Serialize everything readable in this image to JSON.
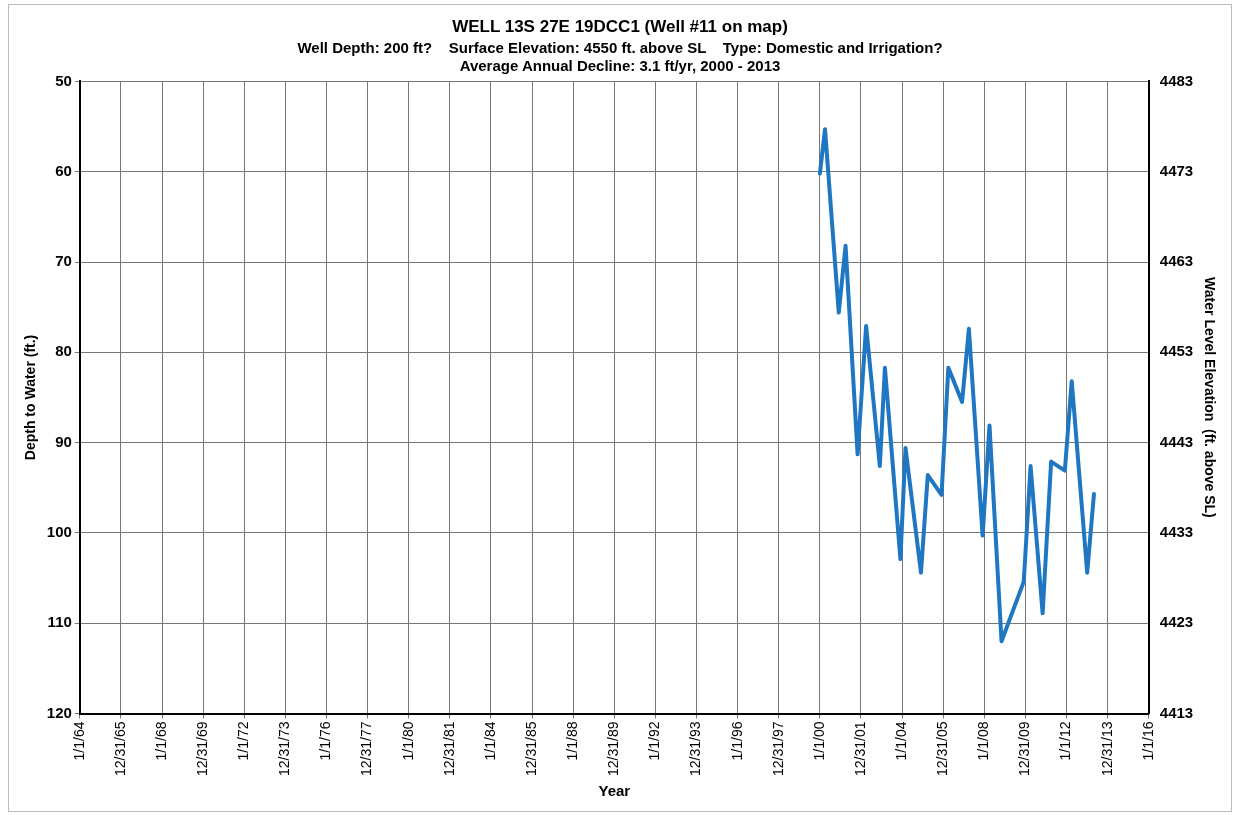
{
  "chart_data": {
    "type": "line",
    "title": "WELL 13S 27E 19DCC1 (Well #11 on map)",
    "subtitle": "Well Depth: 200 ft?    Surface Elevation: 4550 ft. above SL    Type: Domestic and Irrigation?\nAverage Annual Decline: 3.1 ft/yr, 2000 - 2013",
    "xlabel": "Year",
    "ylabel": "Depth to Water (ft.)",
    "y2label": "Water Level Elevation  (ft. above SL)",
    "x": [
      "2000-01",
      "2000-04",
      "2000-12",
      "2001-04",
      "2001-11",
      "2002-04",
      "2002-12",
      "2003-03",
      "2003-12",
      "2004-03",
      "2004-12",
      "2005-04",
      "2005-12",
      "2006-04",
      "2006-12",
      "2007-04",
      "2007-12",
      "2008-04",
      "2008-11",
      "2009-12",
      "2010-04",
      "2010-11",
      "2011-04",
      "2011-12",
      "2012-04",
      "2013-01",
      "2013-05"
    ],
    "series": [
      {
        "color": "#1f77c4",
        "values": [
          60.2,
          55.3,
          75.6,
          68.2,
          91.3,
          77.1,
          92.6,
          81.7,
          102.9,
          90.6,
          104.4,
          93.6,
          95.8,
          81.7,
          85.5,
          77.4,
          100.3,
          88.1,
          112.0,
          105.4,
          92.6,
          108.9,
          92.1,
          93.1,
          83.2,
          104.4,
          95.7
        ]
      }
    ],
    "xlim": [
      "1964-01-01",
      "2016-01-01"
    ],
    "xticks": [
      {
        "value": "1964-01-01",
        "label": "1/1/64"
      },
      {
        "value": "1965-12-31",
        "label": "12/31/65"
      },
      {
        "value": "1968-01-01",
        "label": "1/1/68"
      },
      {
        "value": "1969-12-31",
        "label": "12/31/69"
      },
      {
        "value": "1972-01-01",
        "label": "1/1/72"
      },
      {
        "value": "1973-12-31",
        "label": "12/31/73"
      },
      {
        "value": "1976-01-01",
        "label": "1/1/76"
      },
      {
        "value": "1977-12-31",
        "label": "12/31/77"
      },
      {
        "value": "1980-01-01",
        "label": "1/1/80"
      },
      {
        "value": "1981-12-31",
        "label": "12/31/81"
      },
      {
        "value": "1984-01-01",
        "label": "1/1/84"
      },
      {
        "value": "1985-12-31",
        "label": "12/31/85"
      },
      {
        "value": "1988-01-01",
        "label": "1/1/88"
      },
      {
        "value": "1989-12-31",
        "label": "12/31/89"
      },
      {
        "value": "1992-01-01",
        "label": "1/1/92"
      },
      {
        "value": "1993-12-31",
        "label": "12/31/93"
      },
      {
        "value": "1996-01-01",
        "label": "1/1/96"
      },
      {
        "value": "1997-12-31",
        "label": "12/31/97"
      },
      {
        "value": "2000-01-01",
        "label": "1/1/00"
      },
      {
        "value": "2001-12-31",
        "label": "12/31/01"
      },
      {
        "value": "2004-01-01",
        "label": "1/1/04"
      },
      {
        "value": "2005-12-31",
        "label": "12/31/05"
      },
      {
        "value": "2008-01-01",
        "label": "1/1/08"
      },
      {
        "value": "2009-12-31",
        "label": "12/31/09"
      },
      {
        "value": "2012-01-01",
        "label": "1/1/12"
      },
      {
        "value": "2013-12-31",
        "label": "12/31/13"
      },
      {
        "value": "2016-01-01",
        "label": "1/1/16"
      }
    ],
    "ylim": [
      120,
      50
    ],
    "yticks": [
      50,
      60,
      70,
      80,
      90,
      100,
      110,
      120
    ],
    "y2lim": [
      4413,
      4483
    ],
    "y2ticks": [
      4413,
      4423,
      4433,
      4443,
      4453,
      4463,
      4473,
      4483
    ],
    "grid": true,
    "legend": false,
    "marker": "none",
    "line_style": "solid"
  }
}
